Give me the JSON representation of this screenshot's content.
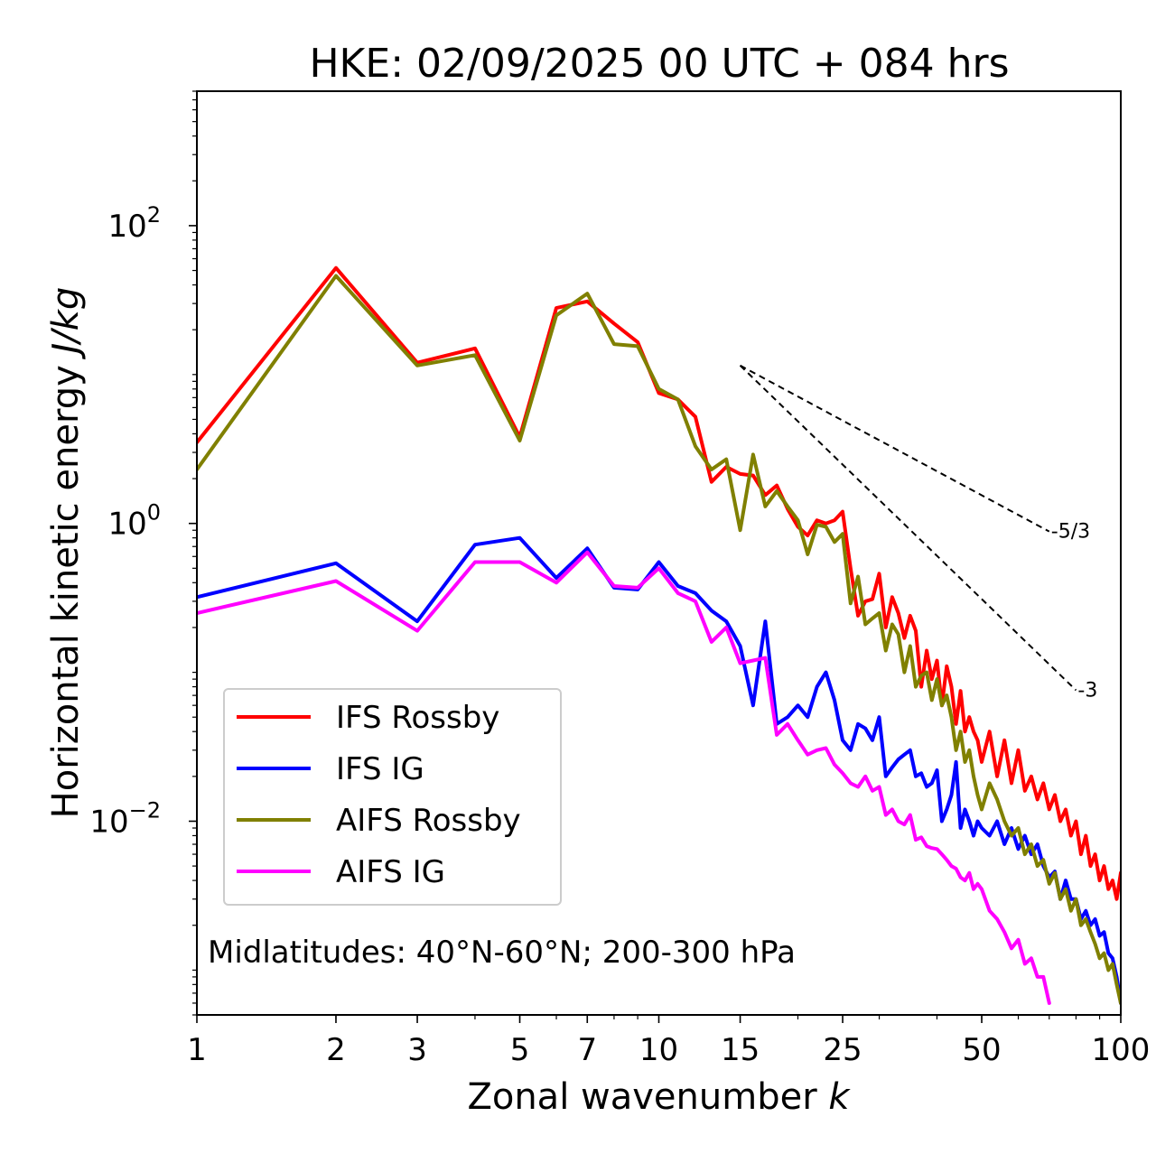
{
  "chart_data": {
    "type": "line",
    "title": "HKE: 02/09/2025 00 UTC + 084 hrs",
    "xlabel": "Zonal wavenumber",
    "xlabel_var": "k",
    "ylabel": "Horizontal kinetic energy",
    "ylabel_units": "J/kg",
    "xscale": "log",
    "yscale": "log",
    "xlim": [
      1,
      100
    ],
    "ylim": [
      0.0005,
      800
    ],
    "xticks": [
      {
        "value": 1,
        "label": "1"
      },
      {
        "value": 2,
        "label": "2"
      },
      {
        "value": 3,
        "label": "3"
      },
      {
        "value": 5,
        "label": "5"
      },
      {
        "value": 7,
        "label": "7"
      },
      {
        "value": 10,
        "label": "10"
      },
      {
        "value": 15,
        "label": "15"
      },
      {
        "value": 25,
        "label": "25"
      },
      {
        "value": 50,
        "label": "50"
      },
      {
        "value": 100,
        "label": "100"
      }
    ],
    "yticks": [
      {
        "value": 100,
        "base": "10",
        "exp": "2"
      },
      {
        "value": 1,
        "base": "10",
        "exp": "0"
      },
      {
        "value": 0.01,
        "base": "10",
        "exp": "−2"
      }
    ],
    "legend_position": "lower-left",
    "annotation": "Midlatitudes: 40°N-60°N; 200-300 hPa",
    "reference_lines": [
      {
        "label": "-5/3",
        "slope": -1.6667,
        "x": [
          15,
          70
        ],
        "y_start": 11.5
      },
      {
        "label": "-3",
        "slope": -3,
        "x": [
          15,
          80
        ],
        "y_start": 11.5
      }
    ],
    "series": [
      {
        "name": "IFS Rossby",
        "color": "#ff0000",
        "x": [
          1,
          2,
          3,
          4,
          5,
          6,
          7,
          8,
          9,
          10,
          11,
          12,
          13,
          14,
          15,
          16,
          17,
          18,
          19,
          20,
          21,
          22,
          23,
          24,
          25,
          26,
          27,
          28,
          29,
          30,
          31,
          32,
          33,
          34,
          35,
          36,
          37,
          38,
          39,
          40,
          41,
          42,
          43,
          44,
          45,
          46,
          47,
          48,
          49,
          50,
          52,
          54,
          56,
          58,
          60,
          62,
          64,
          66,
          68,
          70,
          72,
          74,
          76,
          78,
          80,
          82,
          84,
          86,
          88,
          90,
          92,
          94,
          96,
          98,
          100
        ],
        "values": [
          3.5,
          52,
          12,
          15,
          3.8,
          28,
          31,
          22,
          16.5,
          7.5,
          6.8,
          5.2,
          1.9,
          2.4,
          2.15,
          2.1,
          1.55,
          1.8,
          1.25,
          0.95,
          0.83,
          1.05,
          1.0,
          1.05,
          1.2,
          0.5,
          0.24,
          0.3,
          0.31,
          0.46,
          0.2,
          0.32,
          0.25,
          0.17,
          0.24,
          0.19,
          0.08,
          0.14,
          0.09,
          0.12,
          0.06,
          0.11,
          0.08,
          0.045,
          0.075,
          0.04,
          0.05,
          0.04,
          0.035,
          0.025,
          0.04,
          0.02,
          0.035,
          0.018,
          0.03,
          0.016,
          0.02,
          0.014,
          0.018,
          0.012,
          0.015,
          0.01,
          0.012,
          0.008,
          0.01,
          0.006,
          0.008,
          0.005,
          0.006,
          0.004,
          0.005,
          0.0035,
          0.004,
          0.003,
          0.0045
        ]
      },
      {
        "name": "IFS IG",
        "color": "#0000ff",
        "x": [
          1,
          2,
          3,
          4,
          5,
          6,
          7,
          8,
          9,
          10,
          11,
          12,
          13,
          14,
          15,
          16,
          17,
          18,
          19,
          20,
          21,
          22,
          23,
          24,
          25,
          26,
          27,
          28,
          29,
          30,
          31,
          32,
          33,
          34,
          35,
          36,
          37,
          38,
          39,
          40,
          41,
          42,
          43,
          44,
          45,
          46,
          47,
          48,
          49,
          50,
          52,
          54,
          56,
          58,
          60,
          62,
          64,
          66,
          68,
          70,
          72,
          74,
          76,
          78,
          80,
          82,
          84,
          86,
          88,
          90,
          92,
          94,
          96,
          98,
          100
        ],
        "values": [
          0.32,
          0.54,
          0.22,
          0.72,
          0.8,
          0.43,
          0.68,
          0.37,
          0.36,
          0.55,
          0.38,
          0.34,
          0.26,
          0.22,
          0.15,
          0.06,
          0.22,
          0.045,
          0.05,
          0.06,
          0.05,
          0.08,
          0.1,
          0.065,
          0.035,
          0.03,
          0.045,
          0.042,
          0.035,
          0.05,
          0.02,
          0.023,
          0.026,
          0.028,
          0.03,
          0.02,
          0.021,
          0.017,
          0.018,
          0.022,
          0.01,
          0.012,
          0.015,
          0.025,
          0.009,
          0.012,
          0.01,
          0.008,
          0.01,
          0.009,
          0.008,
          0.01,
          0.007,
          0.009,
          0.0065,
          0.008,
          0.006,
          0.007,
          0.005,
          0.0042,
          0.0046,
          0.003,
          0.004,
          0.003,
          0.003,
          0.0022,
          0.0025,
          0.002,
          0.0022,
          0.0017,
          0.0018,
          0.0013,
          0.0012,
          0.0009,
          0.0006
        ]
      },
      {
        "name": "AIFS Rossby",
        "color": "#808000",
        "x": [
          1,
          2,
          3,
          4,
          5,
          6,
          7,
          8,
          9,
          10,
          11,
          12,
          13,
          14,
          15,
          16,
          17,
          18,
          19,
          20,
          21,
          22,
          23,
          24,
          25,
          26,
          27,
          28,
          29,
          30,
          31,
          32,
          33,
          34,
          35,
          36,
          37,
          38,
          39,
          40,
          41,
          42,
          43,
          44,
          45,
          46,
          47,
          48,
          49,
          50,
          52,
          54,
          56,
          58,
          60,
          62,
          64,
          66,
          68,
          70,
          72,
          74,
          76,
          78,
          80,
          82,
          84,
          86,
          88,
          90,
          92,
          94,
          96,
          98,
          100
        ],
        "values": [
          2.3,
          46,
          11.5,
          13.5,
          3.6,
          25,
          35,
          16,
          15.5,
          8,
          6.8,
          3.3,
          2.3,
          2.7,
          0.9,
          2.9,
          1.3,
          1.65,
          1.3,
          1.05,
          0.62,
          0.98,
          0.95,
          0.75,
          0.85,
          0.29,
          0.44,
          0.21,
          0.23,
          0.25,
          0.14,
          0.21,
          0.18,
          0.1,
          0.15,
          0.08,
          0.095,
          0.1,
          0.065,
          0.09,
          0.06,
          0.07,
          0.05,
          0.03,
          0.04,
          0.025,
          0.03,
          0.02,
          0.015,
          0.012,
          0.018,
          0.014,
          0.01,
          0.008,
          0.009,
          0.006,
          0.007,
          0.005,
          0.0055,
          0.0038,
          0.0045,
          0.003,
          0.0035,
          0.0025,
          0.003,
          0.002,
          0.0022,
          0.0018,
          0.0015,
          0.0012,
          0.0013,
          0.001,
          0.0011,
          0.0008,
          0.0006
        ]
      },
      {
        "name": "AIFS IG",
        "color": "#ff00ff",
        "x": [
          1,
          2,
          3,
          4,
          5,
          6,
          7,
          8,
          9,
          10,
          11,
          12,
          13,
          14,
          15,
          16,
          17,
          18,
          19,
          20,
          21,
          22,
          23,
          24,
          25,
          26,
          27,
          28,
          29,
          30,
          31,
          32,
          33,
          34,
          35,
          36,
          37,
          38,
          39,
          40,
          41,
          42,
          43,
          44,
          45,
          46,
          47,
          48,
          49,
          50,
          52,
          54,
          56,
          58,
          60,
          62,
          64,
          66,
          68,
          70
        ],
        "values": [
          0.25,
          0.41,
          0.19,
          0.55,
          0.55,
          0.4,
          0.64,
          0.38,
          0.37,
          0.5,
          0.34,
          0.3,
          0.16,
          0.2,
          0.115,
          0.12,
          0.125,
          0.038,
          0.045,
          0.035,
          0.028,
          0.03,
          0.031,
          0.024,
          0.021,
          0.018,
          0.017,
          0.02,
          0.016,
          0.017,
          0.011,
          0.012,
          0.01,
          0.0095,
          0.011,
          0.0075,
          0.0078,
          0.0068,
          0.0066,
          0.0065,
          0.006,
          0.0055,
          0.005,
          0.0048,
          0.0042,
          0.004,
          0.0045,
          0.0035,
          0.0038,
          0.0035,
          0.0025,
          0.0022,
          0.0018,
          0.0014,
          0.0016,
          0.0011,
          0.0012,
          0.0009,
          0.0009,
          0.0006
        ]
      }
    ]
  }
}
